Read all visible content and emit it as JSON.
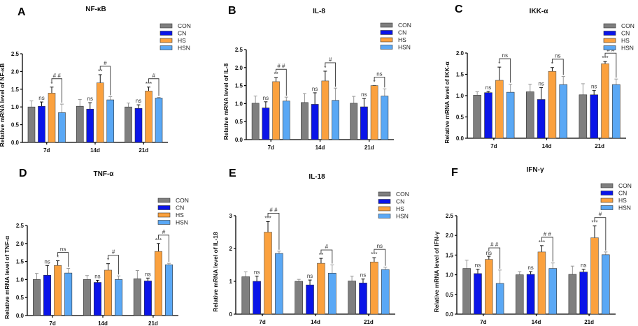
{
  "legend": [
    "CON",
    "CN",
    "HS",
    "HSN"
  ],
  "colors": {
    "CON": "#7f7f7f",
    "CN": "#0a14e8",
    "HS": "#fba13e",
    "HSN": "#5aa8f5"
  },
  "chart_data": [
    {
      "panel": "A",
      "type": "bar",
      "title": "NF-κB",
      "ylabel": "Relative mRNA level of NF-κB",
      "categories": [
        "7d",
        "14d",
        "21d"
      ],
      "ylim": [
        0,
        2.5
      ],
      "yticks": [
        "0.0",
        "0.5",
        "1.0",
        "1.5",
        "2.0",
        "2.5"
      ],
      "series": [
        {
          "name": "CON",
          "values": [
            1.0,
            1.02,
            1.0
          ],
          "errors": [
            0.17,
            0.19,
            0.11
          ]
        },
        {
          "name": "CN",
          "values": [
            1.02,
            0.94,
            0.96
          ],
          "errors": [
            0.12,
            0.18,
            0.1
          ]
        },
        {
          "name": "HS",
          "values": [
            1.39,
            1.68,
            1.45
          ],
          "errors": [
            0.17,
            0.23,
            0.11
          ]
        },
        {
          "name": "HSN",
          "values": [
            0.84,
            1.2,
            1.25
          ],
          "errors": [
            0.24,
            0.09,
            0.02
          ]
        }
      ],
      "cn_labels": [
        "ns",
        "ns",
        "ns"
      ],
      "hs_labels": [
        "*",
        "**",
        "***"
      ],
      "bracket_labels": [
        "# #",
        "#",
        "#"
      ]
    },
    {
      "panel": "B",
      "type": "bar",
      "title": "IL-8",
      "ylabel": "Relative mRNA level of IL-8",
      "categories": [
        "7d",
        "14d",
        "21d"
      ],
      "ylim": [
        0,
        2.5
      ],
      "yticks": [
        "0.0",
        "0.5",
        "1.0",
        "1.5",
        "2.0",
        "2.5"
      ],
      "series": [
        {
          "name": "CON",
          "values": [
            1.01,
            1.03,
            1.01
          ],
          "errors": [
            0.2,
            0.25,
            0.19
          ]
        },
        {
          "name": "CN",
          "values": [
            0.88,
            0.98,
            0.91
          ],
          "errors": [
            0.17,
            0.32,
            0.23
          ]
        },
        {
          "name": "HS",
          "values": [
            1.61,
            1.63,
            1.5
          ],
          "errors": [
            0.11,
            0.27,
            0.0
          ]
        },
        {
          "name": "HSN",
          "values": [
            1.07,
            1.09,
            1.21
          ],
          "errors": [
            0.11,
            0.34,
            0.2
          ]
        }
      ],
      "cn_labels": [
        "ns",
        "ns",
        "ns"
      ],
      "hs_labels": [
        "**",
        "*",
        "*"
      ],
      "bracket_labels": [
        "# #",
        "#",
        "ns"
      ]
    },
    {
      "panel": "C",
      "type": "bar",
      "title": "IKK-α",
      "ylabel": "Relative mRNA level of IKK-α",
      "categories": [
        "7d",
        "14d",
        "21d"
      ],
      "ylim": [
        0,
        2.0
      ],
      "yticks": [
        "0.0",
        "0.5",
        "1.0",
        "1.5",
        "2.0"
      ],
      "series": [
        {
          "name": "CON",
          "values": [
            1.01,
            1.09,
            1.02
          ],
          "errors": [
            0.08,
            0.18,
            0.26
          ]
        },
        {
          "name": "CN",
          "values": [
            1.07,
            0.91,
            1.02
          ],
          "errors": [
            0.03,
            0.28,
            0.1
          ]
        },
        {
          "name": "HS",
          "values": [
            1.36,
            1.57,
            1.75
          ],
          "errors": [
            0.31,
            0.09,
            0.05
          ]
        },
        {
          "name": "HSN",
          "values": [
            1.08,
            1.26,
            1.26
          ],
          "errors": [
            0.19,
            0.19,
            0.13
          ]
        }
      ],
      "cn_labels": [
        "ns",
        "ns",
        "ns"
      ],
      "hs_labels": [
        "*",
        "*",
        "***"
      ],
      "bracket_labels": [
        "ns",
        "ns",
        "# #"
      ]
    },
    {
      "panel": "D",
      "type": "bar",
      "title": "TNF-α",
      "ylabel": "Relative mRNA level of TNF-α",
      "categories": [
        "7d",
        "14d",
        "21d"
      ],
      "ylim": [
        0,
        2.5
      ],
      "yticks": [
        "0.0",
        "0.5",
        "1.0",
        "1.5",
        "2.0",
        "2.5"
      ],
      "series": [
        {
          "name": "CON",
          "values": [
            1.0,
            1.0,
            1.02
          ],
          "errors": [
            0.17,
            0.11,
            0.23
          ]
        },
        {
          "name": "CN",
          "values": [
            1.12,
            0.92,
            0.96
          ],
          "errors": [
            0.27,
            0.06,
            0.08
          ]
        },
        {
          "name": "HS",
          "values": [
            1.39,
            1.26,
            1.78
          ],
          "errors": [
            0.13,
            0.18,
            0.22
          ]
        },
        {
          "name": "HSN",
          "values": [
            1.18,
            1.0,
            1.41
          ],
          "errors": [
            0.13,
            0.1,
            0.04
          ]
        }
      ],
      "cn_labels": [
        "ns",
        "ns",
        "ns"
      ],
      "hs_labels": [
        "*",
        "*",
        "***"
      ],
      "bracket_labels": [
        "ns",
        "#",
        "#"
      ]
    },
    {
      "panel": "E",
      "type": "bar",
      "title": "IL-18",
      "ylabel": "Relative mRNA level of IL-18",
      "categories": [
        "7d",
        "14d",
        "21d"
      ],
      "ylim": [
        0,
        3
      ],
      "yticks": [
        "0",
        "1",
        "2",
        "3"
      ],
      "series": [
        {
          "name": "CON",
          "values": [
            1.14,
            1.0,
            1.01
          ],
          "errors": [
            0.15,
            0.06,
            0.15
          ]
        },
        {
          "name": "CN",
          "values": [
            1.0,
            0.89,
            0.95
          ],
          "errors": [
            0.16,
            0.15,
            0.12
          ]
        },
        {
          "name": "HS",
          "values": [
            2.5,
            1.55,
            1.59
          ],
          "errors": [
            0.32,
            0.15,
            0.13
          ]
        },
        {
          "name": "HSN",
          "values": [
            1.85,
            1.25,
            1.36
          ],
          "errors": [
            0.07,
            0.25,
            0.07
          ]
        }
      ],
      "cn_labels": [
        "ns",
        "ns",
        "ns"
      ],
      "hs_labels": [
        "***",
        "**",
        "***"
      ],
      "bracket_labels": [
        "# #",
        "#",
        "ns"
      ]
    },
    {
      "panel": "F",
      "type": "bar",
      "title": "IFN-γ",
      "ylabel": "Relative mRNA level of IFN-γ",
      "categories": [
        "7d",
        "14d",
        "21d"
      ],
      "ylim": [
        0,
        2.5
      ],
      "yticks": [
        "0.0",
        "0.5",
        "1.0",
        "1.5",
        "2.0",
        "2.5"
      ],
      "series": [
        {
          "name": "CON",
          "values": [
            1.16,
            1.0,
            1.01
          ],
          "errors": [
            0.21,
            0.08,
            0.21
          ]
        },
        {
          "name": "CN",
          "values": [
            1.03,
            1.01,
            1.07
          ],
          "errors": [
            0.11,
            0.07,
            0.07
          ]
        },
        {
          "name": "HS",
          "values": [
            1.39,
            1.58,
            1.94
          ],
          "errors": [
            0.08,
            0.16,
            0.3
          ]
        },
        {
          "name": "HSN",
          "values": [
            0.78,
            1.16,
            1.51
          ],
          "errors": [
            0.34,
            0.14,
            0.07
          ]
        }
      ],
      "cn_labels": [
        "ns",
        "ns",
        "ns"
      ],
      "hs_labels": [
        "ns",
        "***",
        "***"
      ],
      "bracket_labels": [
        "# #",
        "# #",
        "#"
      ]
    }
  ]
}
